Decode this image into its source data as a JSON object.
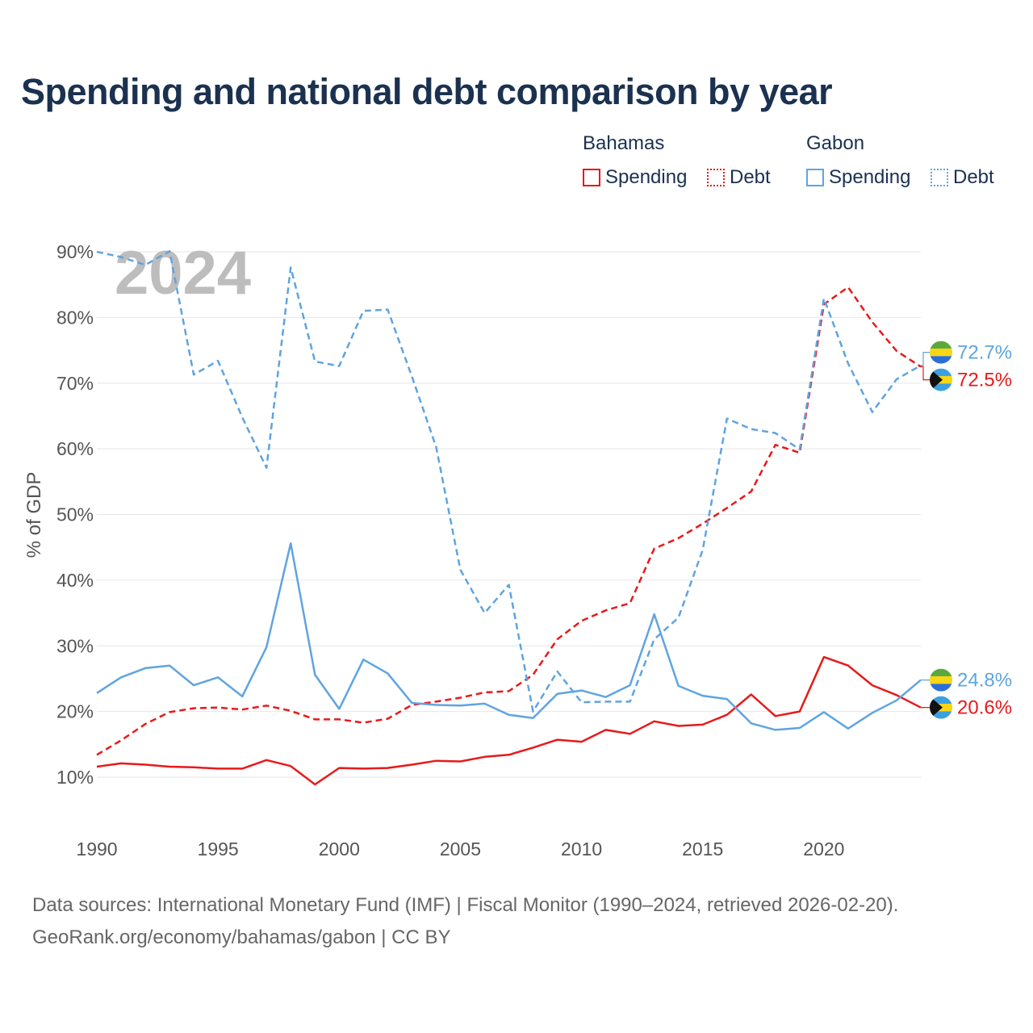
{
  "page": {
    "title": "Spending and national debt comparison by year",
    "footer_line1": "Data sources: International Monetary Fund (IMF) | Fiscal Monitor (1990–2024, retrieved 2026-02-20).",
    "footer_line2": "GeoRank.org/economy/bahamas/gabon | CC BY"
  },
  "legend": {
    "groups": [
      {
        "name": "Bahamas",
        "color": "#e8191a",
        "items": [
          "Spending",
          "Debt"
        ]
      },
      {
        "name": "Gabon",
        "color": "#5fa4e0",
        "items": [
          "Spending",
          "Debt"
        ]
      }
    ]
  },
  "chart_data": {
    "type": "line",
    "title": "Spending and national debt comparison by year",
    "watermark_year": "2024",
    "ylabel": "% of GDP",
    "xlabel": "",
    "xlim": [
      1990,
      2024
    ],
    "ylim": [
      10,
      90
    ],
    "x_ticks": [
      1990,
      1995,
      2000,
      2005,
      2010,
      2015,
      2020
    ],
    "y_ticks": [
      10,
      20,
      30,
      40,
      50,
      60,
      70,
      80,
      90
    ],
    "y_tick_labels": [
      "10%",
      "20%",
      "30%",
      "40%",
      "50%",
      "60%",
      "70%",
      "80%",
      "90%"
    ],
    "x": [
      1990,
      1991,
      1992,
      1993,
      1994,
      1995,
      1996,
      1997,
      1998,
      1999,
      2000,
      2001,
      2002,
      2003,
      2004,
      2005,
      2006,
      2007,
      2008,
      2009,
      2010,
      2011,
      2012,
      2013,
      2014,
      2015,
      2016,
      2017,
      2018,
      2019,
      2020,
      2021,
      2022,
      2023,
      2024
    ],
    "series": [
      {
        "name": "Bahamas Spending",
        "country": "Bahamas",
        "metric": "Spending",
        "color": "#e8191a",
        "dash": "solid",
        "values": [
          11.6,
          12.1,
          11.9,
          11.6,
          11.5,
          11.3,
          11.3,
          12.6,
          11.7,
          8.9,
          11.4,
          11.3,
          11.4,
          11.9,
          12.5,
          12.4,
          13.1,
          13.4,
          14.5,
          15.7,
          15.4,
          17.2,
          16.6,
          18.5,
          17.8,
          18.0,
          19.5,
          22.6,
          19.3,
          20.0,
          28.3,
          27.0,
          24.0,
          22.5,
          20.6
        ]
      },
      {
        "name": "Bahamas Debt",
        "country": "Bahamas",
        "metric": "Debt",
        "color": "#e8191a",
        "dash": "dashed",
        "values": [
          13.4,
          15.6,
          18.1,
          19.9,
          20.5,
          20.6,
          20.3,
          20.9,
          20.1,
          18.8,
          18.8,
          18.3,
          18.9,
          21.0,
          21.5,
          22.1,
          22.9,
          23.1,
          25.6,
          31.0,
          33.8,
          35.4,
          36.5,
          44.8,
          46.4,
          48.6,
          51.0,
          53.5,
          60.6,
          59.4,
          82.0,
          84.6,
          79.3,
          74.9,
          72.5
        ]
      },
      {
        "name": "Gabon Spending",
        "country": "Gabon",
        "metric": "Spending",
        "color": "#5fa4e0",
        "dash": "solid",
        "values": [
          22.8,
          25.2,
          26.6,
          27.0,
          24.0,
          25.2,
          22.3,
          29.8,
          45.6,
          25.6,
          20.4,
          27.9,
          25.8,
          21.3,
          21.0,
          20.9,
          21.2,
          19.5,
          19.0,
          22.7,
          23.2,
          22.2,
          24.0,
          34.8,
          23.9,
          22.4,
          21.9,
          18.2,
          17.2,
          17.5,
          19.9,
          17.4,
          19.8,
          21.7,
          24.8
        ]
      },
      {
        "name": "Gabon Debt",
        "country": "Gabon",
        "metric": "Debt",
        "color": "#5fa4e0",
        "dash": "dashed",
        "values": [
          90.0,
          89.2,
          88.0,
          90.1,
          71.3,
          73.4,
          64.8,
          57.1,
          87.6,
          73.3,
          72.6,
          81.0,
          81.2,
          71.0,
          60.3,
          41.6,
          35.0,
          39.3,
          20.0,
          26.1,
          21.4,
          21.5,
          21.5,
          31.0,
          34.3,
          44.6,
          64.6,
          63.0,
          62.4,
          59.9,
          82.9,
          73.0,
          65.6,
          70.6,
          72.7
        ]
      }
    ],
    "end_labels": [
      {
        "country": "Gabon",
        "metric": "Debt",
        "value": 72.7,
        "text": "72.7%",
        "color": "#5fa4e0"
      },
      {
        "country": "Bahamas",
        "metric": "Debt",
        "value": 72.5,
        "text": "72.5%",
        "color": "#e8191a"
      },
      {
        "country": "Gabon",
        "metric": "Spending",
        "value": 24.8,
        "text": "24.8%",
        "color": "#5fa4e0"
      },
      {
        "country": "Bahamas",
        "metric": "Spending",
        "value": 20.6,
        "text": "20.6%",
        "color": "#e8191a"
      }
    ],
    "grid": true
  }
}
